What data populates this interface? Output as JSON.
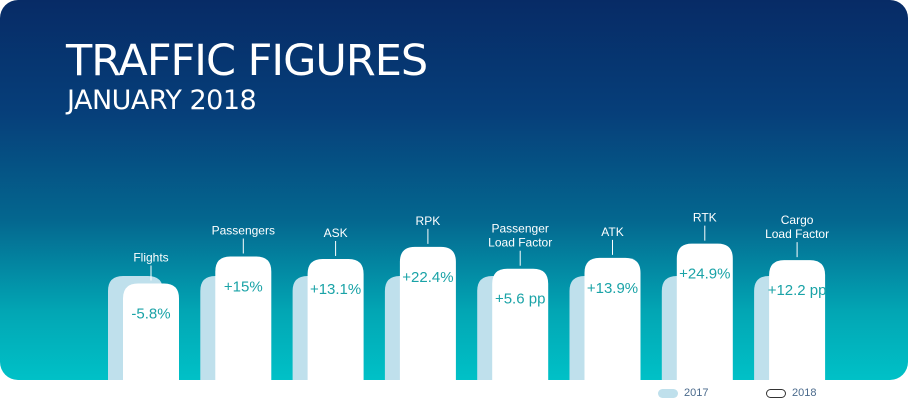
{
  "header": {
    "title": "TRAFFIC FIGURES",
    "subtitle": "JANUARY 2018"
  },
  "colors": {
    "bar_2017": "#bfe0ec",
    "bar_2018": "#ffffff",
    "value_text": "#1aa3a7",
    "label_text": "#ffffff"
  },
  "legend": {
    "items": [
      {
        "label": "2017",
        "color": "#bfe0ec"
      },
      {
        "label": "2018",
        "color": "#ffffff"
      }
    ]
  },
  "chart_data": {
    "type": "bar",
    "title": "TRAFFIC FIGURES",
    "subtitle": "JANUARY 2018",
    "categories": [
      [
        "Flights"
      ],
      [
        "Passengers"
      ],
      [
        "ASK"
      ],
      [
        "RPK"
      ],
      [
        "Passenger",
        "Load Factor"
      ],
      [
        "ATK"
      ],
      [
        "RTK"
      ],
      [
        "Cargo",
        "Load Factor"
      ]
    ],
    "change_labels": [
      "-5.8%",
      "+15%",
      "+13.1%",
      "+22.4%",
      "+5.6 pp",
      "+13.9%",
      "+24.9%",
      "+12.2 pp"
    ],
    "change_values": [
      -5.8,
      15,
      13.1,
      22.4,
      5.6,
      13.9,
      24.9,
      12.2
    ],
    "series": [
      {
        "name": "2017",
        "relative_values": [
          1,
          1,
          1,
          1,
          1,
          1,
          1,
          1
        ]
      },
      {
        "name": "2018",
        "relative_values": [
          0.942,
          1.15,
          1.131,
          1.224,
          1.056,
          1.139,
          1.249,
          1.122
        ]
      }
    ],
    "legend_position": "bottom-right",
    "grid": false
  }
}
